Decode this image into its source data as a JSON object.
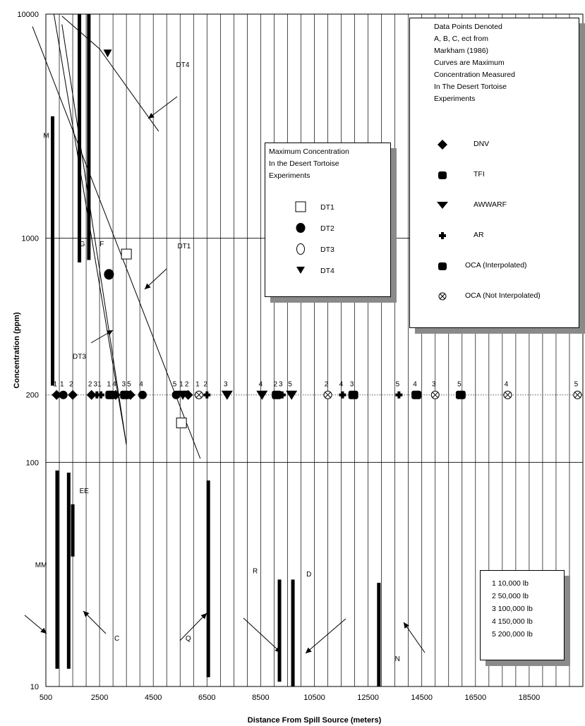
{
  "chart_data": {
    "type": "scatter",
    "xlabel": "Distance From Spill Source (meters)",
    "ylabel": "Concentration (ppm)",
    "xlim": [
      500,
      20500
    ],
    "ylim": [
      10,
      10000
    ],
    "yscale": "log",
    "x_ticks": [
      "500",
      "2500",
      "4500",
      "6500",
      "8500",
      "10500",
      "12500",
      "14500",
      "16500",
      "18500"
    ],
    "y_ticks": [
      "10",
      "100",
      "1000",
      "10000"
    ],
    "y_extra_tick": "200",
    "grid": "vertical lines every 500 m; horizontal lines at 100 and 1000",
    "reference_line": {
      "y": 200,
      "style": "dotted"
    },
    "point_series": [
      {
        "name": "DNV",
        "marker": "diamond",
        "points": [
          {
            "x": 900,
            "label": "1"
          },
          {
            "x": 1500,
            "label": "2"
          },
          {
            "x": 2200,
            "label": "2"
          },
          {
            "x": 3100,
            "label": "4"
          },
          {
            "x": 3650,
            "label": "5"
          },
          {
            "x": 5800,
            "label": "2"
          }
        ]
      },
      {
        "name": "TFI",
        "marker": "circle",
        "points": [
          {
            "x": 1150,
            "label": "1"
          },
          {
            "x": 4100,
            "label": "4"
          },
          {
            "x": 5350,
            "label": "5"
          }
        ]
      },
      {
        "name": "AWWARF",
        "marker": "triangle-down",
        "points": [
          {
            "x": 5600,
            "label": "1"
          },
          {
            "x": 7250,
            "label": "3"
          },
          {
            "x": 8550,
            "label": "4"
          },
          {
            "x": 9650,
            "label": "5"
          }
        ]
      },
      {
        "name": "AR",
        "marker": "cross",
        "points": [
          {
            "x": 2400,
            "label": "3"
          },
          {
            "x": 2550,
            "label": "1"
          },
          {
            "x": 6500,
            "label": "2"
          },
          {
            "x": 9300,
            "label": "3"
          },
          {
            "x": 11550,
            "label": "4"
          },
          {
            "x": 13650,
            "label": "5"
          }
        ]
      },
      {
        "name": "OCA (Interpolated)",
        "marker": "octagon",
        "points": [
          {
            "x": 2900,
            "label": "1"
          },
          {
            "x": 3450,
            "label": "3"
          },
          {
            "x": 9100,
            "label": "2"
          },
          {
            "x": 11950,
            "label": "3"
          },
          {
            "x": 14300,
            "label": "4"
          },
          {
            "x": 15950,
            "label": "5"
          }
        ]
      },
      {
        "name": "OCA (Not Interpolated)",
        "marker": "circle-x",
        "points": [
          {
            "x": 6200,
            "label": "1"
          },
          {
            "x": 11000,
            "label": "2"
          },
          {
            "x": 15000,
            "label": "3"
          },
          {
            "x": 17700,
            "label": "4"
          },
          {
            "x": 20300,
            "label": "5"
          }
        ]
      }
    ],
    "dt_points": [
      {
        "name": "DT1",
        "marker": "square-open",
        "points": [
          {
            "x": 3500,
            "y": 850
          },
          {
            "x": 5550,
            "y": 150
          }
        ]
      },
      {
        "name": "DT2",
        "marker": "circle-filled",
        "points": [
          {
            "x": 2850,
            "y": 690
          }
        ]
      },
      {
        "name": "DT3",
        "marker": "circle-open",
        "points": []
      },
      {
        "name": "DT4",
        "marker": "triangle-down-filled",
        "points": [
          {
            "x": 2800,
            "y": 6700
          }
        ]
      }
    ],
    "curves": [
      {
        "name": "DT1",
        "points": [
          [
            0,
            8800
          ],
          [
            6250,
            104
          ]
        ]
      },
      {
        "name": "DT3",
        "points": [
          [
            1100,
            9000
          ],
          [
            3500,
            120
          ]
        ]
      },
      {
        "name": "DT4",
        "points": [
          [
            1100,
            9800
          ],
          [
            2500,
            7000
          ],
          [
            4700,
            3000
          ]
        ]
      },
      {
        "name": "",
        "points": [
          [
            800,
            10000
          ],
          [
            3500,
            120
          ]
        ]
      }
    ],
    "bars": [
      {
        "label": "M",
        "x": 750,
        "low": 220,
        "high": 3500
      },
      {
        "label": "G",
        "x": 1750,
        "low": 780,
        "high": 10000
      },
      {
        "label": "F",
        "x": 2100,
        "low": 800,
        "high": 10000
      },
      {
        "label": "MM",
        "x": 920,
        "low": 12,
        "high": 92
      },
      {
        "label": "",
        "x": 1350,
        "low": 12,
        "high": 90
      },
      {
        "label": "EE",
        "x": 1500,
        "low": 38,
        "high": 65
      },
      {
        "label": "Q",
        "x": 6550,
        "low": 11,
        "high": 83
      },
      {
        "label": "R",
        "x": 9200,
        "low": 10.5,
        "high": 30
      },
      {
        "label": "D",
        "x": 9700,
        "low": 10,
        "high": 30
      },
      {
        "label": "N",
        "x": 12900,
        "low": 10,
        "high": 29
      }
    ],
    "annotations": [
      {
        "text": "M",
        "x": 400,
        "y": 2800
      },
      {
        "text": "G",
        "x": 1750,
        "y": 920
      },
      {
        "text": "F",
        "x": 2500,
        "y": 920
      },
      {
        "text": "DT1",
        "x": 5400,
        "y": 900
      },
      {
        "text": "DT3",
        "x": 1500,
        "y": 290
      },
      {
        "text": "DT4",
        "x": 5350,
        "y": 5800
      },
      {
        "text": "EE",
        "x": 1750,
        "y": 73
      },
      {
        "text": "MM",
        "x": 100,
        "y": 34
      },
      {
        "text": "C",
        "x": 3050,
        "y": 16
      },
      {
        "text": "Q",
        "x": 5700,
        "y": 16
      },
      {
        "text": "R",
        "x": 8200,
        "y": 32
      },
      {
        "text": "D",
        "x": 10200,
        "y": 31
      },
      {
        "text": "N",
        "x": 13500,
        "y": 13
      }
    ]
  },
  "legend_source": {
    "lines": [
      "Data Points Denoted",
      " A, B, C, ect from",
      "Markham (1986)",
      "Curves are Maximum",
      "Concentration Measured",
      "In The Desert Tortoise",
      "Experiments"
    ],
    "items": [
      {
        "label": "DNV",
        "icon": "diamond-icon"
      },
      {
        "label": "TFI",
        "icon": "octagon-icon"
      },
      {
        "label": "AWWARF",
        "icon": "down-triangle-icon"
      },
      {
        "label": "AR",
        "icon": "cross-icon"
      },
      {
        "label": "OCA (Interpolated)",
        "icon": "octagon-icon"
      },
      {
        "label": "OCA (Not Interpolated)",
        "icon": "circle-x-icon"
      }
    ]
  },
  "legend_dt": {
    "lines": [
      "Maximum Concentration",
      " In the Desert Tortoise",
      "Experiments"
    ],
    "items": [
      {
        "label": "DT1",
        "icon": "open-square-icon"
      },
      {
        "label": "DT2",
        "icon": "filled-circle-icon"
      },
      {
        "label": "DT3",
        "icon": "open-circle-icon"
      },
      {
        "label": "DT4",
        "icon": "filled-triangle-icon"
      }
    ]
  },
  "legend_weights": {
    "items": [
      "1  10,000 lb",
      "2  50,000 lb",
      "3  100,000 lb",
      "4  150,000 lb",
      "5  200,000 lb"
    ]
  }
}
